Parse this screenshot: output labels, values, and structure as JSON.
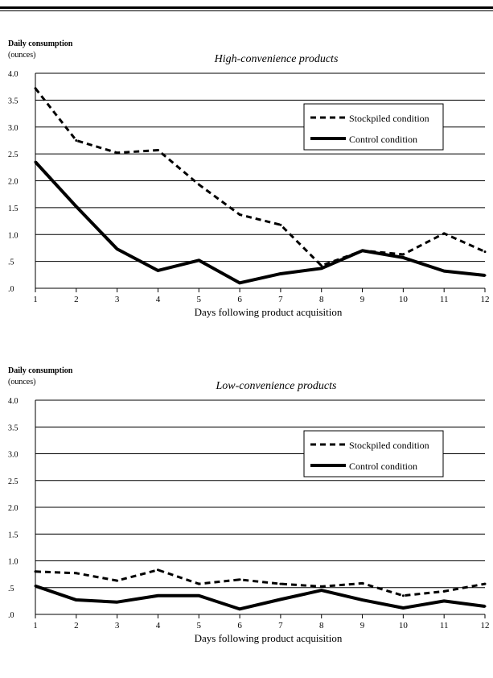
{
  "chart_data": [
    {
      "type": "line",
      "title": "High-convenience products",
      "ylabel_line1": "Daily consumption",
      "ylabel_line2": "(ounces)",
      "xlabel": "Days following product acquisition",
      "ylim": [
        0,
        4
      ],
      "y_ticks": [
        ".0",
        ".5",
        "1.0",
        "1.5",
        "2.0",
        "2.5",
        "3.0",
        "3.5",
        "4.0"
      ],
      "x": [
        1,
        2,
        3,
        4,
        5,
        6,
        7,
        8,
        9,
        10,
        11,
        12
      ],
      "grid": true,
      "legend_position": "top-right",
      "series": [
        {
          "name": "Stockpiled condition",
          "style": "dashed",
          "values": [
            3.72,
            2.75,
            2.52,
            2.57,
            1.93,
            1.37,
            1.18,
            0.42,
            0.7,
            0.63,
            1.02,
            0.68
          ]
        },
        {
          "name": "Control condition",
          "style": "solid",
          "values": [
            2.35,
            1.52,
            0.73,
            0.33,
            0.52,
            0.1,
            0.27,
            0.37,
            0.7,
            0.57,
            0.32,
            0.24
          ]
        }
      ]
    },
    {
      "type": "line",
      "title": "Low-convenience products",
      "ylabel_line1": "Daily consumption",
      "ylabel_line2": "(ounces)",
      "xlabel": "Days following product acquisition",
      "ylim": [
        0,
        4
      ],
      "y_ticks": [
        ".0",
        ".5",
        "1.0",
        "1.5",
        "2.0",
        "2.5",
        "3.0",
        "3.5",
        "4.0"
      ],
      "x": [
        1,
        2,
        3,
        4,
        5,
        6,
        7,
        8,
        9,
        10,
        11,
        12
      ],
      "grid": true,
      "legend_position": "top-right",
      "series": [
        {
          "name": "Stockpiled condition",
          "style": "dashed",
          "values": [
            0.8,
            0.77,
            0.63,
            0.83,
            0.57,
            0.65,
            0.57,
            0.52,
            0.58,
            0.35,
            0.43,
            0.57
          ]
        },
        {
          "name": "Control condition",
          "style": "solid",
          "values": [
            0.53,
            0.27,
            0.23,
            0.35,
            0.35,
            0.1,
            0.28,
            0.45,
            0.27,
            0.12,
            0.25,
            0.15
          ]
        }
      ]
    }
  ]
}
